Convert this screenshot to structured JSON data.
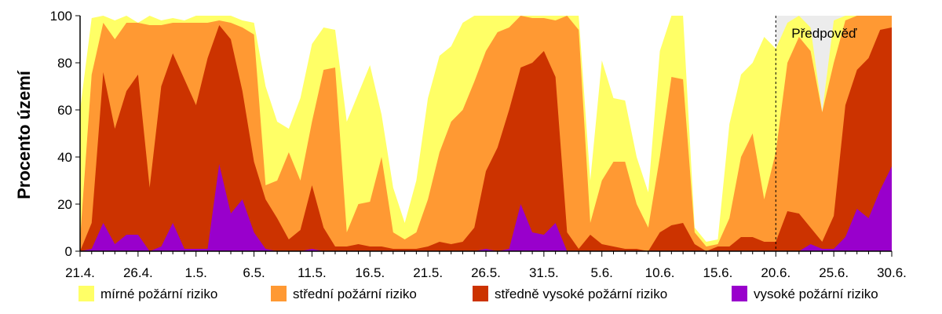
{
  "chart_data": {
    "type": "area",
    "stacked": false,
    "ylabel": "Procento území",
    "ylim": [
      0,
      100
    ],
    "yticks": [
      0,
      20,
      40,
      60,
      80,
      100
    ],
    "x_start": "21.4.",
    "x_end": "30.6.",
    "day_count": 70,
    "xtick_labels": [
      "21.4.",
      "26.4.",
      "1.5.",
      "6.5.",
      "11.5.",
      "16.5.",
      "21.5.",
      "26.5.",
      "31.5.",
      "5.6.",
      "10.6.",
      "15.6.",
      "20.6.",
      "25.6.",
      "30.6."
    ],
    "forecast": {
      "label": "Předpověď",
      "start": "20.6.",
      "end": "30.6.",
      "color": "#ececec"
    },
    "series": [
      {
        "name": "mírné požární riziko",
        "color": "#ffff66",
        "values": [
          60,
          99,
          100,
          98,
          100,
          97,
          100,
          98,
          99,
          98,
          100,
          100,
          100,
          100,
          98,
          97,
          70,
          55,
          52,
          65,
          88,
          95,
          94,
          55,
          67,
          79,
          58,
          27,
          12,
          30,
          65,
          83,
          87,
          97,
          100,
          100,
          100,
          100,
          100,
          100,
          100,
          100,
          100,
          100,
          30,
          81,
          65,
          64,
          40,
          25,
          85,
          100,
          100,
          10,
          4,
          5,
          54,
          75,
          80,
          91,
          86,
          97,
          100,
          95,
          59,
          98,
          100,
          100,
          100,
          100,
          100
        ]
      },
      {
        "name": "střední požární riziko",
        "color": "#ff9933",
        "values": [
          5,
          75,
          97,
          90,
          97,
          97,
          96,
          96,
          97,
          97,
          97,
          97,
          98,
          97,
          95,
          92,
          28,
          30,
          42,
          30,
          55,
          77,
          78,
          8,
          20,
          21,
          40,
          8,
          5,
          8,
          22,
          42,
          55,
          60,
          72,
          85,
          93,
          95,
          100,
          99,
          99,
          98,
          100,
          94,
          12,
          30,
          38,
          38,
          20,
          10,
          40,
          74,
          73,
          8,
          2,
          3,
          14,
          40,
          50,
          22,
          42,
          80,
          91,
          85,
          59,
          80,
          98,
          100,
          100,
          100,
          100
        ]
      },
      {
        "name": "středně vysoké požární riziko",
        "color": "#cc3300",
        "values": [
          0,
          12,
          76,
          52,
          68,
          75,
          27,
          70,
          84,
          73,
          62,
          82,
          96,
          90,
          68,
          38,
          22,
          14,
          5,
          9,
          28,
          10,
          2,
          2,
          3,
          2,
          2,
          1,
          1,
          1,
          2,
          4,
          3,
          4,
          10,
          34,
          44,
          60,
          78,
          80,
          85,
          74,
          8,
          1,
          7,
          3,
          2,
          1,
          1,
          0,
          8,
          11,
          12,
          3,
          0,
          2,
          2,
          6,
          6,
          4,
          4,
          17,
          16,
          10,
          4,
          15,
          62,
          77,
          82,
          94,
          95
        ]
      },
      {
        "name": "vysoké požární riziko",
        "color": "#9900cc",
        "values": [
          0,
          1,
          12,
          3,
          7,
          7,
          0,
          2,
          12,
          1,
          1,
          1,
          37,
          16,
          22,
          8,
          1,
          0,
          0,
          0,
          1,
          0,
          0,
          0,
          0,
          0,
          0,
          0,
          0,
          0,
          0,
          0,
          0,
          0,
          0,
          1,
          0,
          1,
          20,
          8,
          7,
          12,
          0,
          0,
          0,
          0,
          0,
          0,
          0,
          0,
          0,
          0,
          0,
          0,
          0,
          0,
          0,
          0,
          0,
          0,
          0,
          0,
          0,
          3,
          1,
          1,
          6,
          18,
          14,
          26,
          36
        ]
      }
    ],
    "legend_position": "bottom"
  }
}
